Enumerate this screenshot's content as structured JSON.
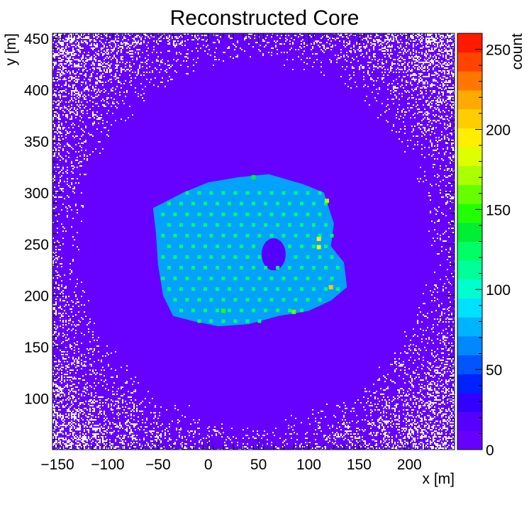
{
  "chart_data": {
    "type": "heatmap",
    "title": "Reconstructed Core",
    "xlabel": "x [m]",
    "ylabel": "y [m]",
    "zlabel": "count",
    "xlim": [
      -155,
      245
    ],
    "ylim": [
      50,
      455
    ],
    "zlim": [
      0,
      260
    ],
    "x_ticks": [
      "-150",
      "-100",
      "-50",
      "0",
      "50",
      "100",
      "150",
      "200"
    ],
    "y_ticks": [
      "100",
      "150",
      "200",
      "250",
      "300",
      "350",
      "400",
      "450"
    ],
    "z_ticks": [
      "0",
      "50",
      "100",
      "150",
      "200",
      "250"
    ],
    "colormap": [
      "#6600ff",
      "#5500ff",
      "#3300ff",
      "#0022ff",
      "#0055ff",
      "#0088ff",
      "#00b3ff",
      "#00e0ff",
      "#00ffd0",
      "#00ff99",
      "#00ff66",
      "#00ee33",
      "#22ff00",
      "#66ff00",
      "#aaff00",
      "#ddff00",
      "#ffee00",
      "#ffcc00",
      "#ffaa00",
      "#ff7700",
      "#ff4400",
      "#ff1a00"
    ],
    "background_color": "#6600ff",
    "sparse_color": "#ffffff",
    "footprint": {
      "description_points": [
        [
          -55,
          285
        ],
        [
          -25,
          300
        ],
        [
          0,
          310
        ],
        [
          30,
          315
        ],
        [
          60,
          318
        ],
        [
          95,
          308
        ],
        [
          115,
          300
        ],
        [
          125,
          270
        ],
        [
          122,
          248
        ],
        [
          135,
          232
        ],
        [
          138,
          208
        ],
        [
          122,
          195
        ],
        [
          100,
          185
        ],
        [
          70,
          180
        ],
        [
          40,
          172
        ],
        [
          10,
          170
        ],
        [
          -15,
          175
        ],
        [
          -35,
          180
        ],
        [
          -45,
          200
        ],
        [
          -50,
          230
        ],
        [
          -52,
          260
        ]
      ],
      "typical_count": 75,
      "peak_count": 210,
      "hole_center": [
        65,
        240
      ],
      "hole_radius": 12
    },
    "grid_points": {
      "x_range": [
        -45,
        130
      ],
      "y_range": [
        175,
        310
      ],
      "spacing": 12,
      "typical_count": 120,
      "hot_spots": [
        {
          "x": 122,
          "y": 208,
          "count": 210
        },
        {
          "x": 110,
          "y": 255,
          "count": 190
        },
        {
          "x": 110,
          "y": 247,
          "count": 180
        },
        {
          "x": 118,
          "y": 292,
          "count": 170
        },
        {
          "x": 85,
          "y": 184,
          "count": 160
        },
        {
          "x": 15,
          "y": 185,
          "count": 150
        },
        {
          "x": 45,
          "y": 315,
          "count": 140
        }
      ]
    }
  }
}
